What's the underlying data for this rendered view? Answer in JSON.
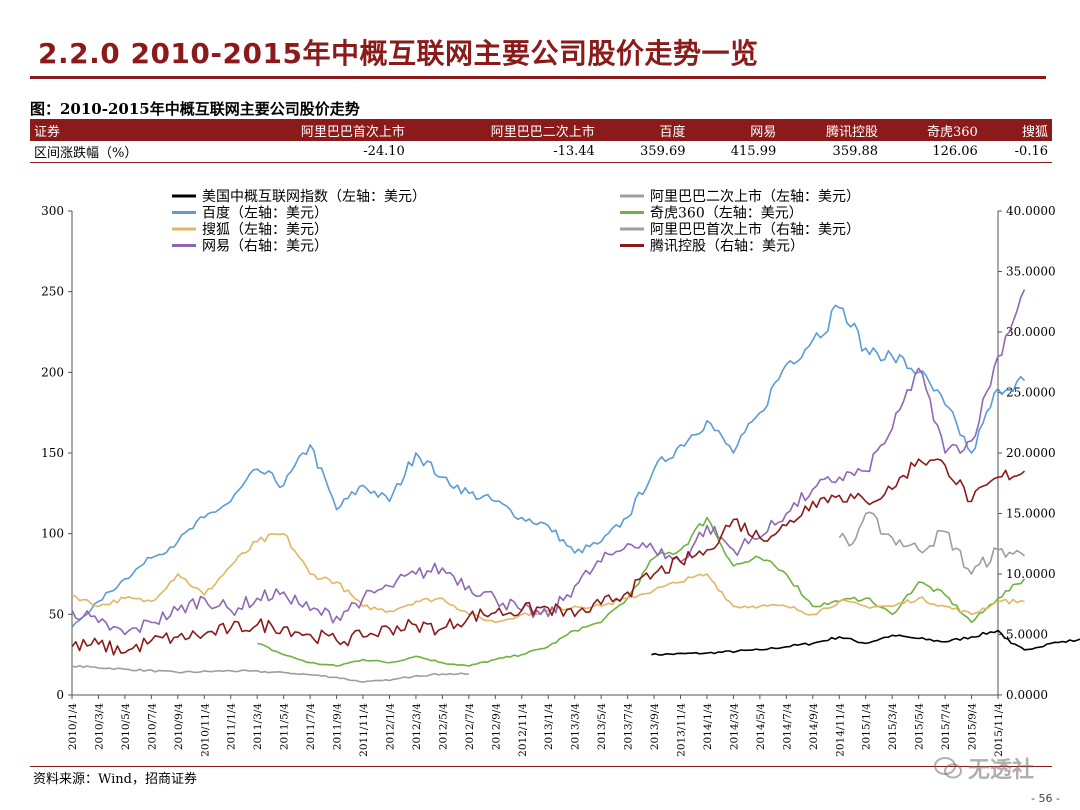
{
  "slide": {
    "title": "2.2.0 2010-2015年中概互联网主要公司股价走势一览",
    "page_number": "- 56 -"
  },
  "figure": {
    "caption": "图：2010-2015年中概互联网主要公司股价走势"
  },
  "table": {
    "headers": [
      "证券",
      "阿里巴巴首次上市",
      "阿里巴巴二次上市",
      "百度",
      "网易",
      "腾讯控股",
      "奇虎360",
      "搜狐"
    ],
    "rows": [
      [
        "区间涨跌幅（%）",
        "-24.10",
        "-13.44",
        "359.69",
        "415.99",
        "359.88",
        "126.06",
        "-0.16"
      ]
    ]
  },
  "source": "资料来源：Wind，招商证券",
  "watermark": "无透社",
  "chart_data": {
    "type": "line",
    "x_tick_labels": [
      "2010/1/4",
      "2010/3/4",
      "2010/5/4",
      "2010/7/4",
      "2010/9/4",
      "2010/11/4",
      "2011/1/4",
      "2011/3/4",
      "2011/5/4",
      "2011/7/4",
      "2011/9/4",
      "2011/11/4",
      "2012/1/4",
      "2012/3/4",
      "2012/5/4",
      "2012/7/4",
      "2012/9/4",
      "2012/11/4",
      "2013/1/4",
      "2013/3/4",
      "2013/5/4",
      "2013/7/4",
      "2013/9/4",
      "2013/11/4",
      "2014/1/4",
      "2014/3/4",
      "2014/5/4",
      "2014/7/4",
      "2014/9/4",
      "2014/11/4",
      "2015/1/4",
      "2015/3/4",
      "2015/5/4",
      "2015/7/4",
      "2015/9/4",
      "2015/11/4"
    ],
    "y_left": {
      "min": 0,
      "max": 300,
      "ticks": [
        "0",
        "50",
        "100",
        "150",
        "200",
        "250",
        "300"
      ]
    },
    "y_right": {
      "min": 0,
      "max": 40,
      "ticks": [
        "0.0000",
        "5.0000",
        "10.0000",
        "15.0000",
        "20.0000",
        "25.0000",
        "30.0000",
        "35.0000",
        "40.0000"
      ]
    },
    "series": [
      {
        "name": "美国中概互联网指数（左轴：美元）",
        "color": "#000000",
        "axis": "left",
        "start": 21.9,
        "points": [
          [
            21.9,
            25
          ],
          [
            24,
            26
          ],
          [
            26,
            28
          ],
          [
            28,
            32
          ],
          [
            29,
            36
          ],
          [
            30,
            32
          ],
          [
            31,
            37
          ],
          [
            32,
            35
          ],
          [
            33,
            33
          ],
          [
            34,
            36
          ],
          [
            35,
            40
          ],
          [
            35.5,
            32
          ],
          [
            36,
            28
          ],
          [
            37,
            32
          ],
          [
            38,
            34
          ],
          [
            39,
            35
          ]
        ]
      },
      {
        "name": "阿里巴巴二次上市（左轴：美元）",
        "color": "#9e9e9e",
        "axis": "left",
        "start": 0,
        "points": [
          [
            0,
            18
          ],
          [
            2,
            16
          ],
          [
            4,
            14
          ],
          [
            6,
            15
          ],
          [
            8,
            14
          ],
          [
            10,
            11
          ],
          [
            11,
            8
          ],
          [
            12,
            9
          ],
          [
            13,
            12
          ],
          [
            14,
            13
          ],
          [
            15,
            13
          ]
        ]
      },
      {
        "name": "百度（左轴：美元）",
        "color": "#5b9bd5",
        "axis": "left",
        "start": 0,
        "points": [
          [
            0,
            42
          ],
          [
            1,
            58
          ],
          [
            2,
            72
          ],
          [
            3,
            85
          ],
          [
            4,
            95
          ],
          [
            5,
            110
          ],
          [
            6,
            120
          ],
          [
            7,
            140
          ],
          [
            8,
            130
          ],
          [
            9,
            155
          ],
          [
            10,
            115
          ],
          [
            11,
            130
          ],
          [
            12,
            120
          ],
          [
            13,
            150
          ],
          [
            14,
            135
          ],
          [
            15,
            125
          ],
          [
            16,
            120
          ],
          [
            17,
            110
          ],
          [
            18,
            105
          ],
          [
            19,
            88
          ],
          [
            20,
            95
          ],
          [
            21,
            110
          ],
          [
            22,
            140
          ],
          [
            23,
            155
          ],
          [
            24,
            170
          ],
          [
            25,
            150
          ],
          [
            26,
            175
          ],
          [
            27,
            205
          ],
          [
            28,
            220
          ],
          [
            29,
            240
          ],
          [
            30,
            215
          ],
          [
            31,
            210
          ],
          [
            32,
            200
          ],
          [
            33,
            180
          ],
          [
            34,
            150
          ],
          [
            35,
            190
          ],
          [
            36,
            195
          ]
        ]
      },
      {
        "name": "奇虎360（左轴：美元）",
        "color": "#6fb33f",
        "axis": "left",
        "start": 7,
        "points": [
          [
            7,
            32
          ],
          [
            8,
            25
          ],
          [
            9,
            20
          ],
          [
            10,
            18
          ],
          [
            11,
            22
          ],
          [
            12,
            20
          ],
          [
            13,
            24
          ],
          [
            14,
            20
          ],
          [
            15,
            18
          ],
          [
            16,
            22
          ],
          [
            17,
            25
          ],
          [
            18,
            30
          ],
          [
            19,
            40
          ],
          [
            20,
            45
          ],
          [
            21,
            60
          ],
          [
            22,
            85
          ],
          [
            23,
            90
          ],
          [
            24,
            110
          ],
          [
            25,
            80
          ],
          [
            26,
            85
          ],
          [
            27,
            75
          ],
          [
            28,
            55
          ],
          [
            29,
            58
          ],
          [
            30,
            60
          ],
          [
            31,
            50
          ],
          [
            32,
            70
          ],
          [
            33,
            62
          ],
          [
            34,
            45
          ],
          [
            35,
            60
          ],
          [
            36,
            72
          ]
        ]
      },
      {
        "name": "搜狐（左轴：美元）",
        "color": "#e2b664",
        "axis": "left",
        "start": 0,
        "points": [
          [
            0,
            62
          ],
          [
            1,
            55
          ],
          [
            2,
            60
          ],
          [
            3,
            58
          ],
          [
            4,
            75
          ],
          [
            5,
            62
          ],
          [
            6,
            80
          ],
          [
            7,
            95
          ],
          [
            8,
            100
          ],
          [
            9,
            75
          ],
          [
            10,
            70
          ],
          [
            11,
            55
          ],
          [
            12,
            52
          ],
          [
            13,
            58
          ],
          [
            14,
            60
          ],
          [
            15,
            50
          ],
          [
            16,
            45
          ],
          [
            17,
            50
          ],
          [
            18,
            52
          ],
          [
            19,
            55
          ],
          [
            20,
            55
          ],
          [
            21,
            60
          ],
          [
            22,
            65
          ],
          [
            23,
            70
          ],
          [
            24,
            75
          ],
          [
            25,
            55
          ],
          [
            26,
            55
          ],
          [
            27,
            55
          ],
          [
            28,
            50
          ],
          [
            29,
            58
          ],
          [
            30,
            55
          ],
          [
            31,
            55
          ],
          [
            32,
            60
          ],
          [
            33,
            55
          ],
          [
            34,
            50
          ],
          [
            35,
            58
          ],
          [
            36,
            58
          ]
        ]
      },
      {
        "name": "阿里巴巴首次上市（右轴：美元）",
        "color": "#9e9e9e",
        "axis": "right",
        "start": 29,
        "points": [
          [
            29,
            13
          ],
          [
            29.5,
            12.5
          ],
          [
            30,
            15
          ],
          [
            31,
            13
          ],
          [
            32,
            12
          ],
          [
            33,
            13.5
          ],
          [
            34,
            10
          ],
          [
            35,
            12
          ],
          [
            36,
            11.5
          ]
        ]
      },
      {
        "name": "网易（右轴：美元）",
        "color": "#8e67b5",
        "axis": "right",
        "start": 0,
        "points": [
          [
            0,
            7
          ],
          [
            1,
            6
          ],
          [
            2,
            5
          ],
          [
            3,
            6
          ],
          [
            4,
            7
          ],
          [
            5,
            8
          ],
          [
            6,
            7
          ],
          [
            7,
            8
          ],
          [
            8,
            8.5
          ],
          [
            9,
            7
          ],
          [
            10,
            6.5
          ],
          [
            11,
            8
          ],
          [
            12,
            9
          ],
          [
            13,
            10
          ],
          [
            14,
            10.5
          ],
          [
            15,
            9
          ],
          [
            16,
            8
          ],
          [
            17,
            7
          ],
          [
            18,
            6.5
          ],
          [
            19,
            9
          ],
          [
            20,
            11
          ],
          [
            21,
            12.5
          ],
          [
            22,
            12
          ],
          [
            23,
            11
          ],
          [
            24,
            14
          ],
          [
            25,
            12
          ],
          [
            26,
            13
          ],
          [
            27,
            15
          ],
          [
            28,
            17
          ],
          [
            29,
            18
          ],
          [
            30,
            18.5
          ],
          [
            31,
            22
          ],
          [
            32,
            27
          ],
          [
            33,
            20
          ],
          [
            34,
            21
          ],
          [
            35,
            28
          ],
          [
            36,
            33.5
          ]
        ]
      },
      {
        "name": "腾讯控股（右轴：美元）",
        "color": "#8b1a1a",
        "axis": "right",
        "start": 0,
        "points": [
          [
            0,
            4
          ],
          [
            1,
            4.2
          ],
          [
            2,
            3.5
          ],
          [
            3,
            4.5
          ],
          [
            4,
            4.8
          ],
          [
            5,
            5
          ],
          [
            6,
            5.5
          ],
          [
            7,
            5.8
          ],
          [
            8,
            5.6
          ],
          [
            9,
            5
          ],
          [
            10,
            4.5
          ],
          [
            11,
            4.8
          ],
          [
            12,
            5.5
          ],
          [
            13,
            5.8
          ],
          [
            14,
            5.5
          ],
          [
            15,
            6.5
          ],
          [
            16,
            6.8
          ],
          [
            17,
            7
          ],
          [
            18,
            7.2
          ],
          [
            19,
            6.5
          ],
          [
            20,
            7.5
          ],
          [
            21,
            8.5
          ],
          [
            22,
            10
          ],
          [
            23,
            11
          ],
          [
            24,
            12
          ],
          [
            25,
            14.5
          ],
          [
            26,
            13
          ],
          [
            27,
            14
          ],
          [
            28,
            16
          ],
          [
            29,
            16.5
          ],
          [
            30,
            16
          ],
          [
            31,
            17
          ],
          [
            32,
            19.5
          ],
          [
            33,
            19
          ],
          [
            34,
            16
          ],
          [
            35,
            18
          ],
          [
            36,
            18.5
          ]
        ]
      }
    ]
  }
}
